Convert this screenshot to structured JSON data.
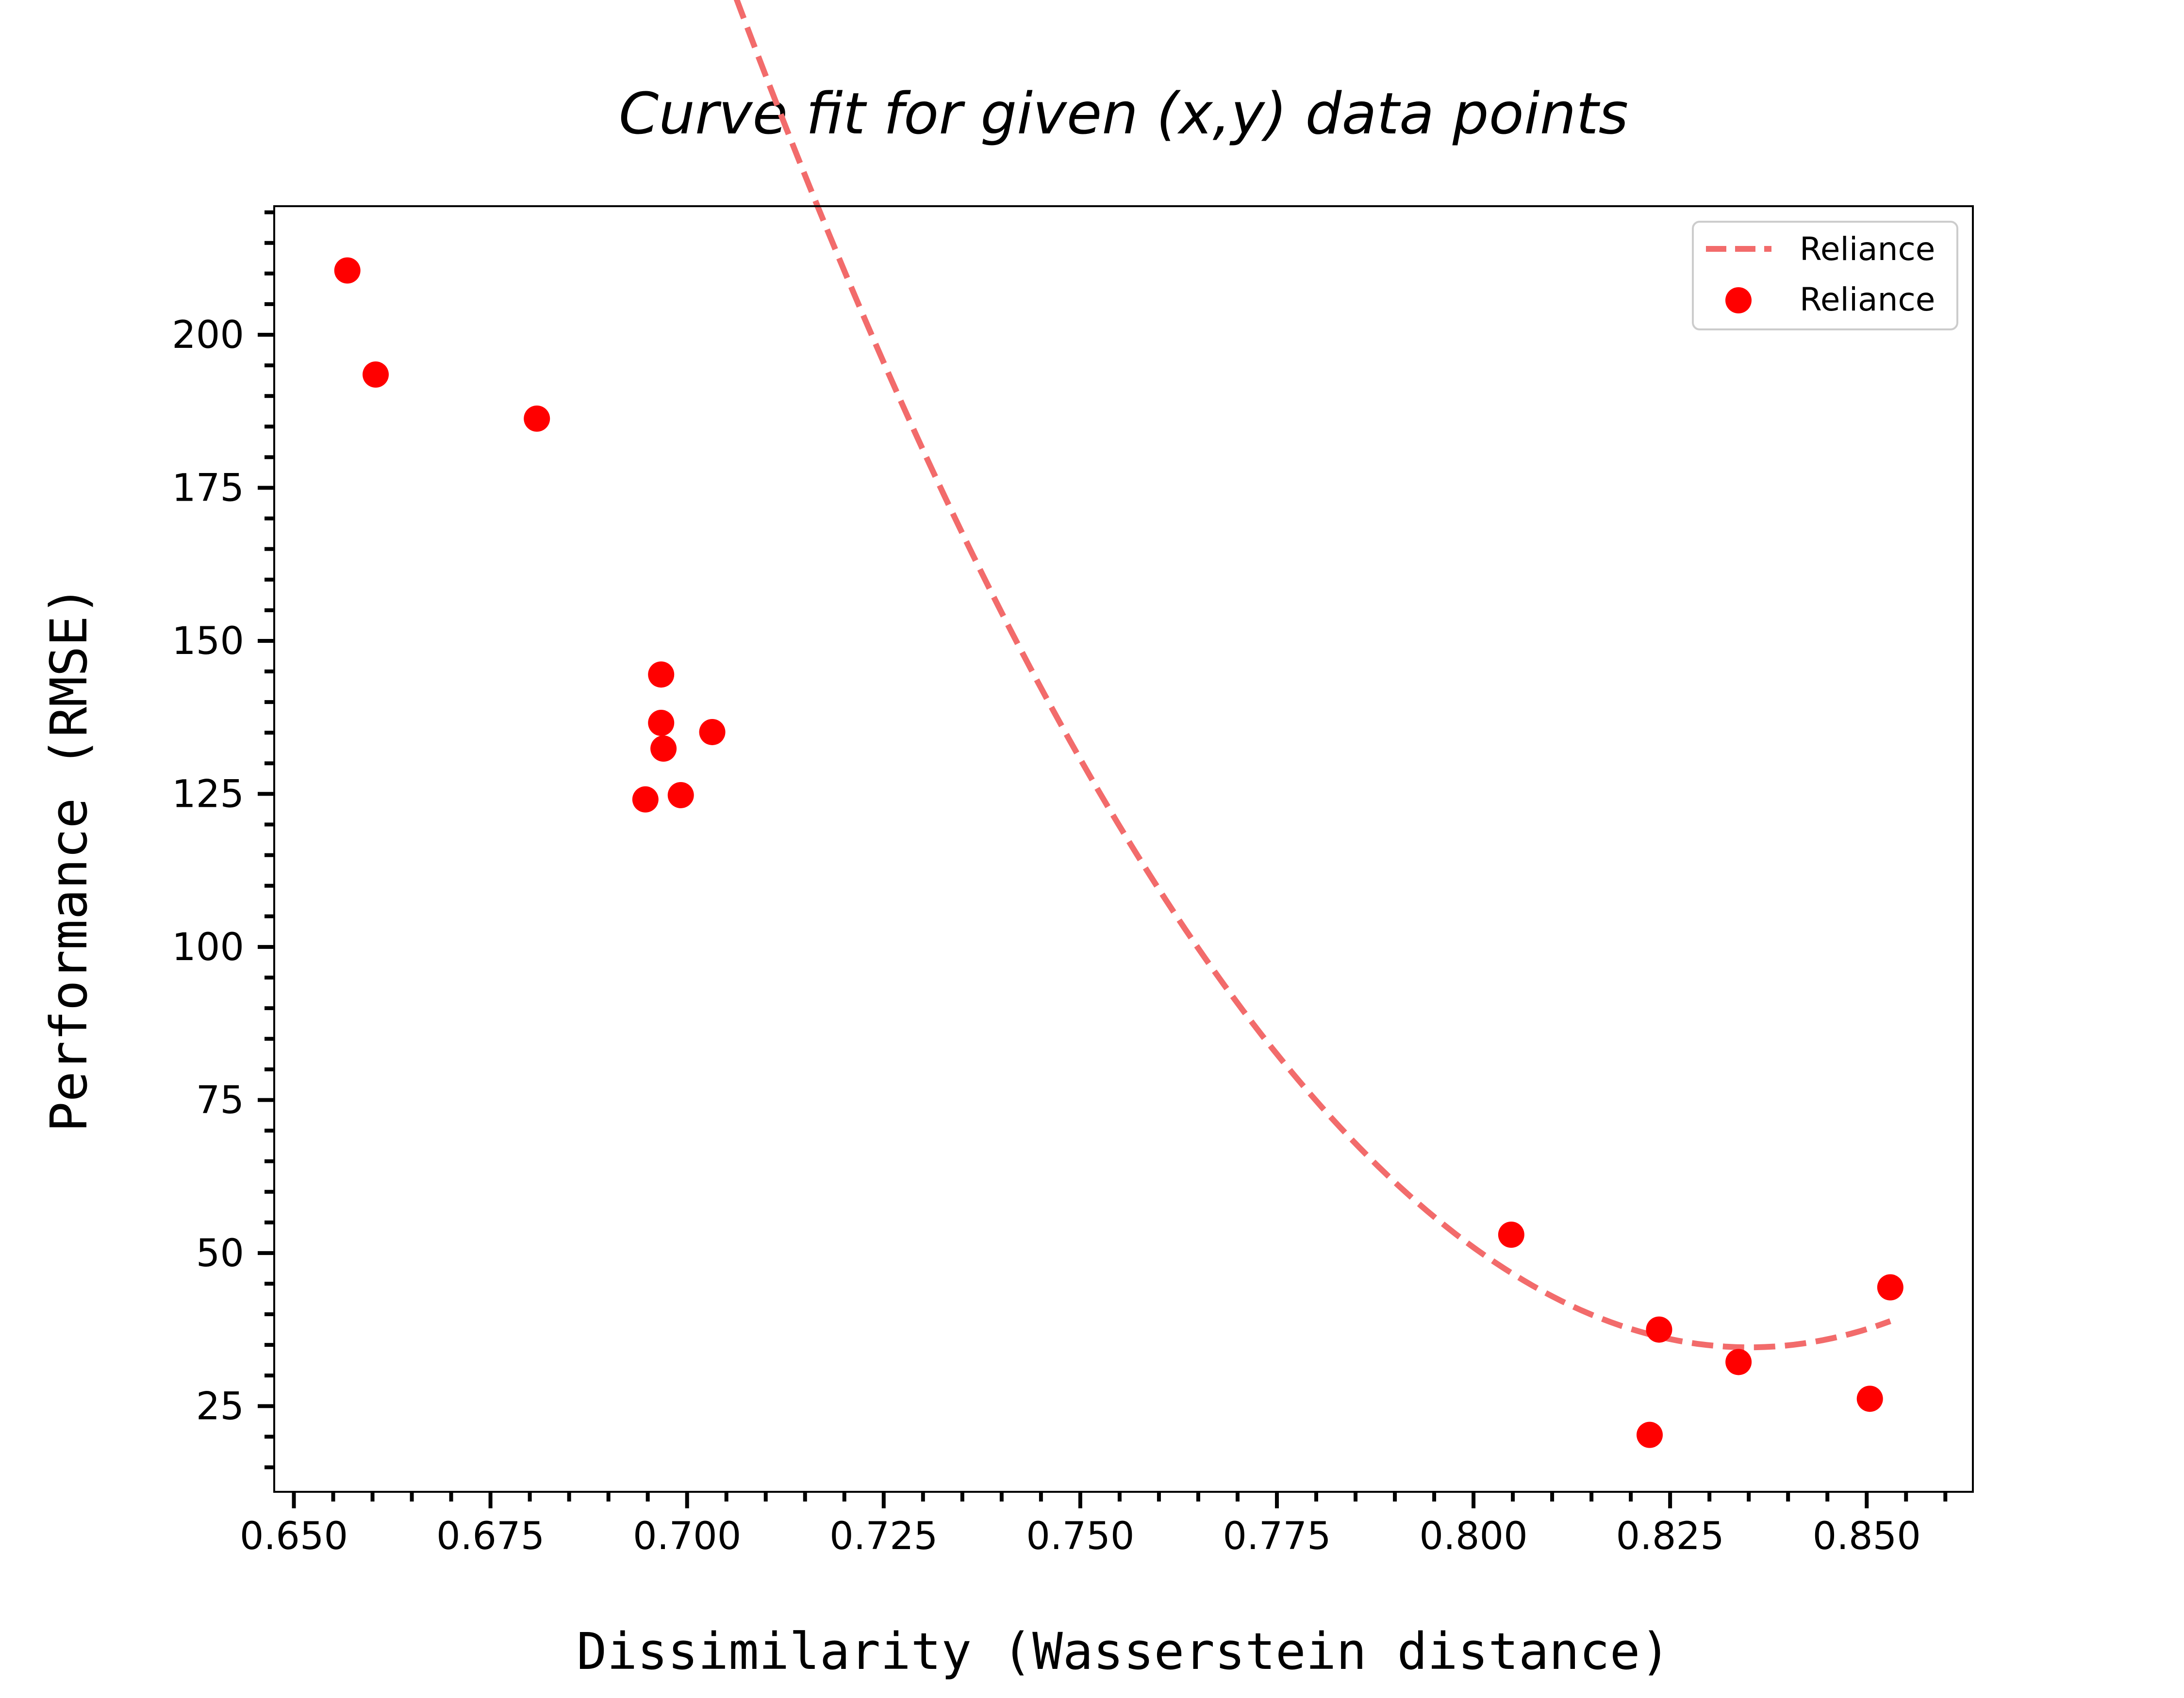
{
  "chart_data": {
    "type": "scatter",
    "title": "Curve fit for given (x,y) data points",
    "xlabel": "Dissimilarity (Wasserstein distance)",
    "ylabel": "Performance (RMSE)",
    "xlim": [
      0.6475,
      0.8635
    ],
    "ylim": [
      11,
      221
    ],
    "xticks": [
      "0.650",
      "0.675",
      "0.700",
      "0.725",
      "0.750",
      "0.775",
      "0.800",
      "0.825",
      "0.850"
    ],
    "xtick_values": [
      0.65,
      0.675,
      0.7,
      0.725,
      0.75,
      0.775,
      0.8,
      0.825,
      0.85
    ],
    "yticks": [
      "25",
      "50",
      "75",
      "100",
      "125",
      "150",
      "175",
      "200"
    ],
    "ytick_values": [
      25,
      50,
      75,
      100,
      125,
      150,
      175,
      200
    ],
    "grid": false,
    "legend_position": "top-right",
    "series": [
      {
        "name": "Reliance",
        "kind": "fit-line",
        "style": "dashed",
        "color": "#f26b6b",
        "fit_coefficients": [
          13283.0,
          -22184.0,
          9297.0
        ],
        "x_range": [
          0.6565,
          0.853
        ]
      },
      {
        "name": "Reliance",
        "kind": "points",
        "color": "#ff0000",
        "points": [
          {
            "x": 0.6568,
            "y": 210.5
          },
          {
            "x": 0.6604,
            "y": 193.5
          },
          {
            "x": 0.6809,
            "y": 186.3
          },
          {
            "x": 0.6947,
            "y": 124.1
          },
          {
            "x": 0.6967,
            "y": 144.5
          },
          {
            "x": 0.6967,
            "y": 136.6
          },
          {
            "x": 0.697,
            "y": 132.4
          },
          {
            "x": 0.6992,
            "y": 124.8
          },
          {
            "x": 0.7032,
            "y": 135.1
          },
          {
            "x": 0.8048,
            "y": 53.0
          },
          {
            "x": 0.8224,
            "y": 20.3
          },
          {
            "x": 0.8236,
            "y": 37.5
          },
          {
            "x": 0.8337,
            "y": 32.2
          },
          {
            "x": 0.8504,
            "y": 26.2
          },
          {
            "x": 0.853,
            "y": 44.4
          }
        ]
      }
    ]
  }
}
